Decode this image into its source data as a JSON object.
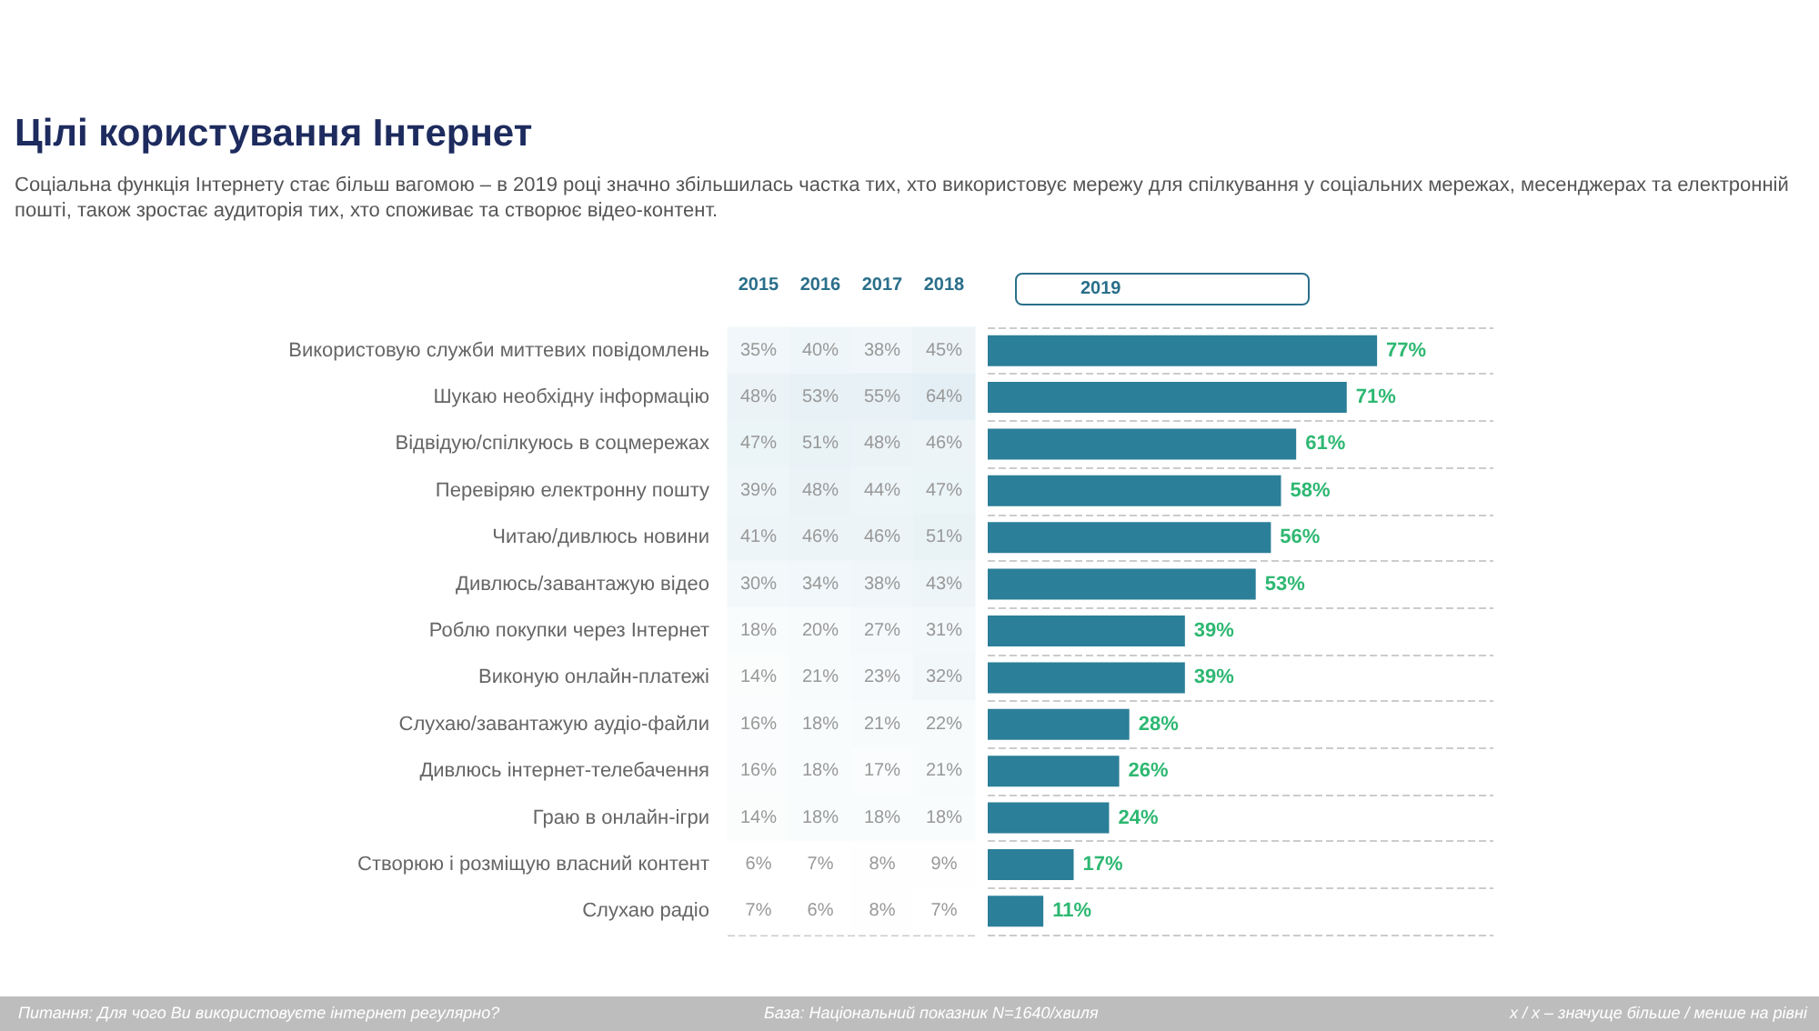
{
  "chart_data": [
    {
      "type": "heatmap",
      "title": "Цілі користування Інтернет",
      "subtitle": "Соціальна функція Інтернету стає більш вагомою  – в 2019 році значно збільшилась частка тих, хто використовує мережу для спілкування у соціальних мережах, месенджерах та електронній пошті,  також  зростає аудиторія тих, хто споживає та створює відео-контент.",
      "categories": [
        "2015",
        "2016",
        "2017",
        "2018"
      ],
      "y_categories": [
        "Використовую служби миттевих повідомлень",
        "Шукаю необхідну інформацію",
        "Відвідую/спілкуюсь в соцмережах",
        "Перевіряю електронну пошту",
        "Читаю/дивлюсь новини",
        "Дивлюсь/завантажую відео",
        "Роблю покупки через Інтернет",
        "Виконую онлайн-платежі",
        "Слухаю/завантажую аудіо-файли",
        "Дивлюсь інтернет-телебачення",
        "Граю в онлайн-ігри",
        "Створюю і розміщую власний контент",
        "Слухаю радіо"
      ],
      "cells": [
        [
          35,
          40,
          38,
          45
        ],
        [
          48,
          53,
          55,
          64
        ],
        [
          47,
          51,
          48,
          46
        ],
        [
          39,
          48,
          44,
          47
        ],
        [
          41,
          46,
          46,
          51
        ],
        [
          30,
          34,
          38,
          43
        ],
        [
          18,
          20,
          27,
          31
        ],
        [
          14,
          21,
          23,
          32
        ],
        [
          16,
          18,
          21,
          22
        ],
        [
          16,
          18,
          17,
          21
        ],
        [
          14,
          18,
          18,
          18
        ],
        [
          6,
          7,
          8,
          9
        ],
        [
          7,
          6,
          8,
          7
        ]
      ],
      "cell_labels": [
        [
          "35%",
          "40%",
          "38%",
          "45%"
        ],
        [
          "48%",
          "53%",
          "55%",
          "64%"
        ],
        [
          "47%",
          "51%",
          "48%",
          "46%"
        ],
        [
          "39%",
          "48%",
          "44%",
          "47%"
        ],
        [
          "41%",
          "46%",
          "46%",
          "51%"
        ],
        [
          "30%",
          "34%",
          "38%",
          "43%"
        ],
        [
          "18%",
          "20%",
          "27%",
          "31%"
        ],
        [
          "14%",
          "21%",
          "23%",
          "32%"
        ],
        [
          "16%",
          "18%",
          "21%",
          "22%"
        ],
        [
          "16%",
          "18%",
          "17%",
          "21%"
        ],
        [
          "14%",
          "18%",
          "18%",
          "18%"
        ],
        [
          "6%",
          "7%",
          "8%",
          "9%"
        ],
        [
          "7%",
          "6%",
          "8%",
          "7%"
        ]
      ],
      "grid": "y",
      "annotations": [
        "Питання: Для чого Ви використовуєте інтернет регулярно?",
        "База: Національний показник N=1640/хвиля",
        "х / х – значуще більше / менше на рівні"
      ]
    },
    {
      "type": "bar",
      "orientation": "horizontal",
      "categories": [
        null,
        null,
        null,
        null,
        null,
        null,
        null,
        null,
        null,
        null,
        null,
        null,
        null
      ],
      "series": [
        {
          "name": "2019",
          "color": "#2b7f98",
          "values": [
            77,
            71,
            61,
            58,
            56,
            53,
            39,
            39,
            28,
            26,
            24,
            17,
            11
          ],
          "value_labels": [
            "77%",
            "71%",
            "61%",
            "58%",
            "56%",
            "53%",
            "39%",
            "39%",
            "28%",
            "26%",
            "24%",
            "17%",
            "11%"
          ]
        }
      ],
      "xlim": [
        0,
        100
      ],
      "grid": "y"
    }
  ]
}
